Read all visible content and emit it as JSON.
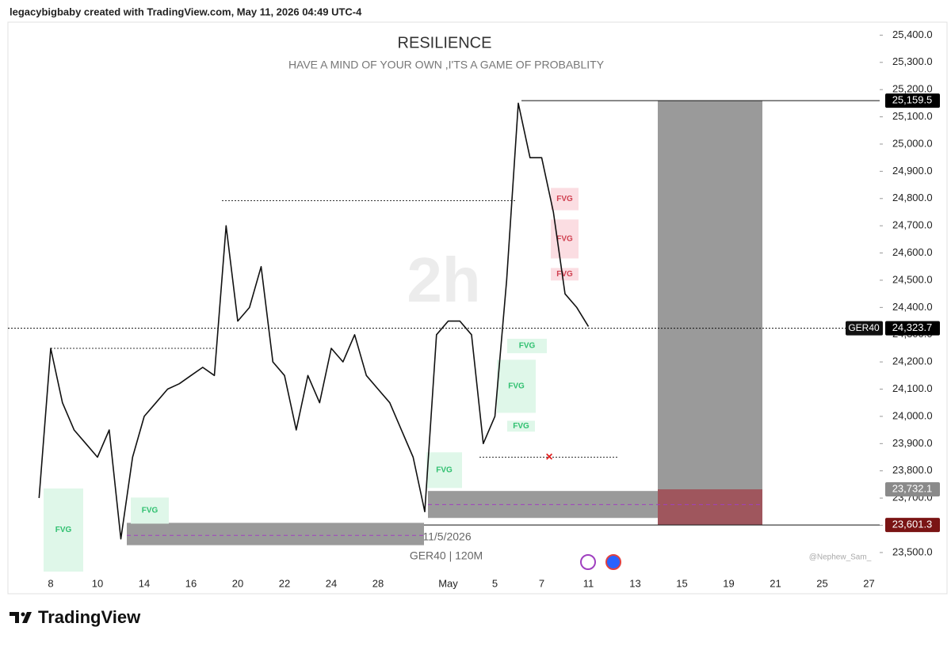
{
  "chart_data": {
    "type": "line",
    "header": "legacybigbaby created with TradingView.com, May 11, 2026 04:49 UTC-4",
    "title": "RESILIENCE",
    "subtitle": "HAVE A MIND OF YOUR OWN ,I'TS A GAME OF PROBABLITY",
    "watermark": "2h",
    "date_label": "11/5/2026",
    "symbol_info": "GER40 | 120M",
    "credit": "@Nephew_Sam_",
    "brand": "TradingView",
    "marker": "×",
    "categories": [
      null,
      null,
      "8",
      null,
      null,
      null,
      "10",
      null,
      null,
      null,
      "14",
      null,
      null,
      null,
      "16",
      null,
      null,
      null,
      "20",
      null,
      null,
      null,
      "22",
      null,
      null,
      null,
      "24",
      null,
      null,
      null,
      "28",
      null,
      null,
      null,
      null,
      null,
      "May",
      null,
      null,
      null,
      "5",
      null,
      null,
      null,
      "7",
      null,
      null,
      null,
      "11",
      null,
      null,
      null,
      "13",
      null,
      null,
      null,
      "15",
      null,
      null,
      null,
      "19",
      null,
      null,
      null,
      "21",
      null,
      null,
      null,
      "25",
      null,
      null,
      null,
      "27",
      null
    ],
    "series": [
      {
        "color": "#111111",
        "values": [
          null,
          23700,
          24250,
          24050,
          23950,
          23900,
          23850,
          23950,
          23550,
          23850,
          24000,
          24050,
          24100,
          24120,
          24150,
          24180,
          24150,
          24700,
          24350,
          24400,
          24550,
          24200,
          24150,
          23950,
          24150,
          24050,
          24250,
          24200,
          24300,
          24150,
          24100,
          24050,
          23950,
          23850,
          23650,
          24300,
          24350,
          24350,
          24300,
          23900,
          24000,
          24500,
          25150,
          24950,
          24950,
          24750,
          24450,
          24400,
          24330,
          null,
          null,
          null,
          null,
          null,
          null,
          null,
          null,
          null,
          null,
          null,
          null,
          null,
          null,
          null,
          null,
          null,
          null,
          null,
          null,
          null,
          null,
          null,
          null,
          null
        ]
      }
    ],
    "ylim": [
      23430,
      25500
    ],
    "yticks": [
      {
        "value": 23500,
        "label": "23,500.0"
      },
      {
        "value": 23600,
        "label": "23,600.0"
      },
      {
        "value": 23700,
        "label": "23,700.0"
      },
      {
        "value": 23800,
        "label": "23,800.0"
      },
      {
        "value": 23900,
        "label": "23,900.0"
      },
      {
        "value": 24000,
        "label": "24,000.0"
      },
      {
        "value": 24100,
        "label": "24,100.0"
      },
      {
        "value": 24200,
        "label": "24,200.0"
      },
      {
        "value": 24300,
        "label": "24,300.0"
      },
      {
        "value": 24400,
        "label": "24,400.0"
      },
      {
        "value": 24500,
        "label": "24,500.0"
      },
      {
        "value": 24600,
        "label": "24,600.0"
      },
      {
        "value": 24700,
        "label": "24,700.0"
      },
      {
        "value": 24800,
        "label": "24,800.0"
      },
      {
        "value": 24900,
        "label": "24,900.0"
      },
      {
        "value": 25000,
        "label": "25,000.0"
      },
      {
        "value": 25100,
        "label": "25,100.0"
      },
      {
        "value": 25200,
        "label": "25,200.0"
      },
      {
        "value": 25300,
        "label": "25,300.0"
      },
      {
        "value": 25400,
        "label": "25,400.0"
      }
    ],
    "levels": [
      {
        "value": 25159.5,
        "label": "25,159.5",
        "color": "#000000"
      },
      {
        "value": 24323.7,
        "label": "24,323.7",
        "color": "#000000",
        "symbol": "GER40"
      },
      {
        "value": 23732.1,
        "label": "23,732.1",
        "color": "#8a8a8a"
      },
      {
        "value": 23601.3,
        "label": "23,601.3",
        "color": "#7a1414"
      }
    ],
    "lines": [
      {
        "value": 24250,
        "color": "#333333"
      },
      {
        "value": 24792,
        "color": "#333333"
      },
      {
        "value": 23850,
        "color": "#333333"
      },
      {
        "value": 23676,
        "color": "#a040c0"
      },
      {
        "value": 23563,
        "color": "#a040c0"
      }
    ],
    "zones": [
      {
        "ylim": [
          23527,
          23609
        ],
        "color": "#9a9a9a"
      },
      {
        "ylim": [
          23627,
          23726
        ],
        "color": "#9a9a9a"
      },
      {
        "ylim": [
          23601.3,
          25159.5
        ],
        "color": "#9a9a9a"
      },
      {
        "ylim": [
          23601.3,
          23732.1
        ],
        "color": "#a04a52"
      },
      {
        "label": "FVG",
        "ylim": [
          23430,
          23735
        ],
        "color": "#dff7e9"
      },
      {
        "label": "FVG",
        "ylim": [
          23606,
          23702
        ],
        "color": "#dff7e9"
      },
      {
        "label": "FVG",
        "ylim": [
          23737,
          23868
        ],
        "color": "#dff7e9"
      },
      {
        "label": "FVG",
        "ylim": [
          24232,
          24285
        ],
        "color": "#dff7e9"
      },
      {
        "label": "FVG",
        "ylim": [
          24013,
          24208
        ],
        "color": "#dff7e9"
      },
      {
        "label": "FVG",
        "ylim": [
          23944,
          23984
        ],
        "color": "#dff7e9"
      },
      {
        "label": "FVG",
        "ylim": [
          24757,
          24839
        ],
        "color": "#fbdde2"
      },
      {
        "label": "FVG",
        "ylim": [
          24580,
          24723
        ],
        "color": "#fbdde2"
      },
      {
        "label": "FVG",
        "ylim": [
          24499,
          24545
        ],
        "color": "#fbdde2"
      }
    ]
  }
}
